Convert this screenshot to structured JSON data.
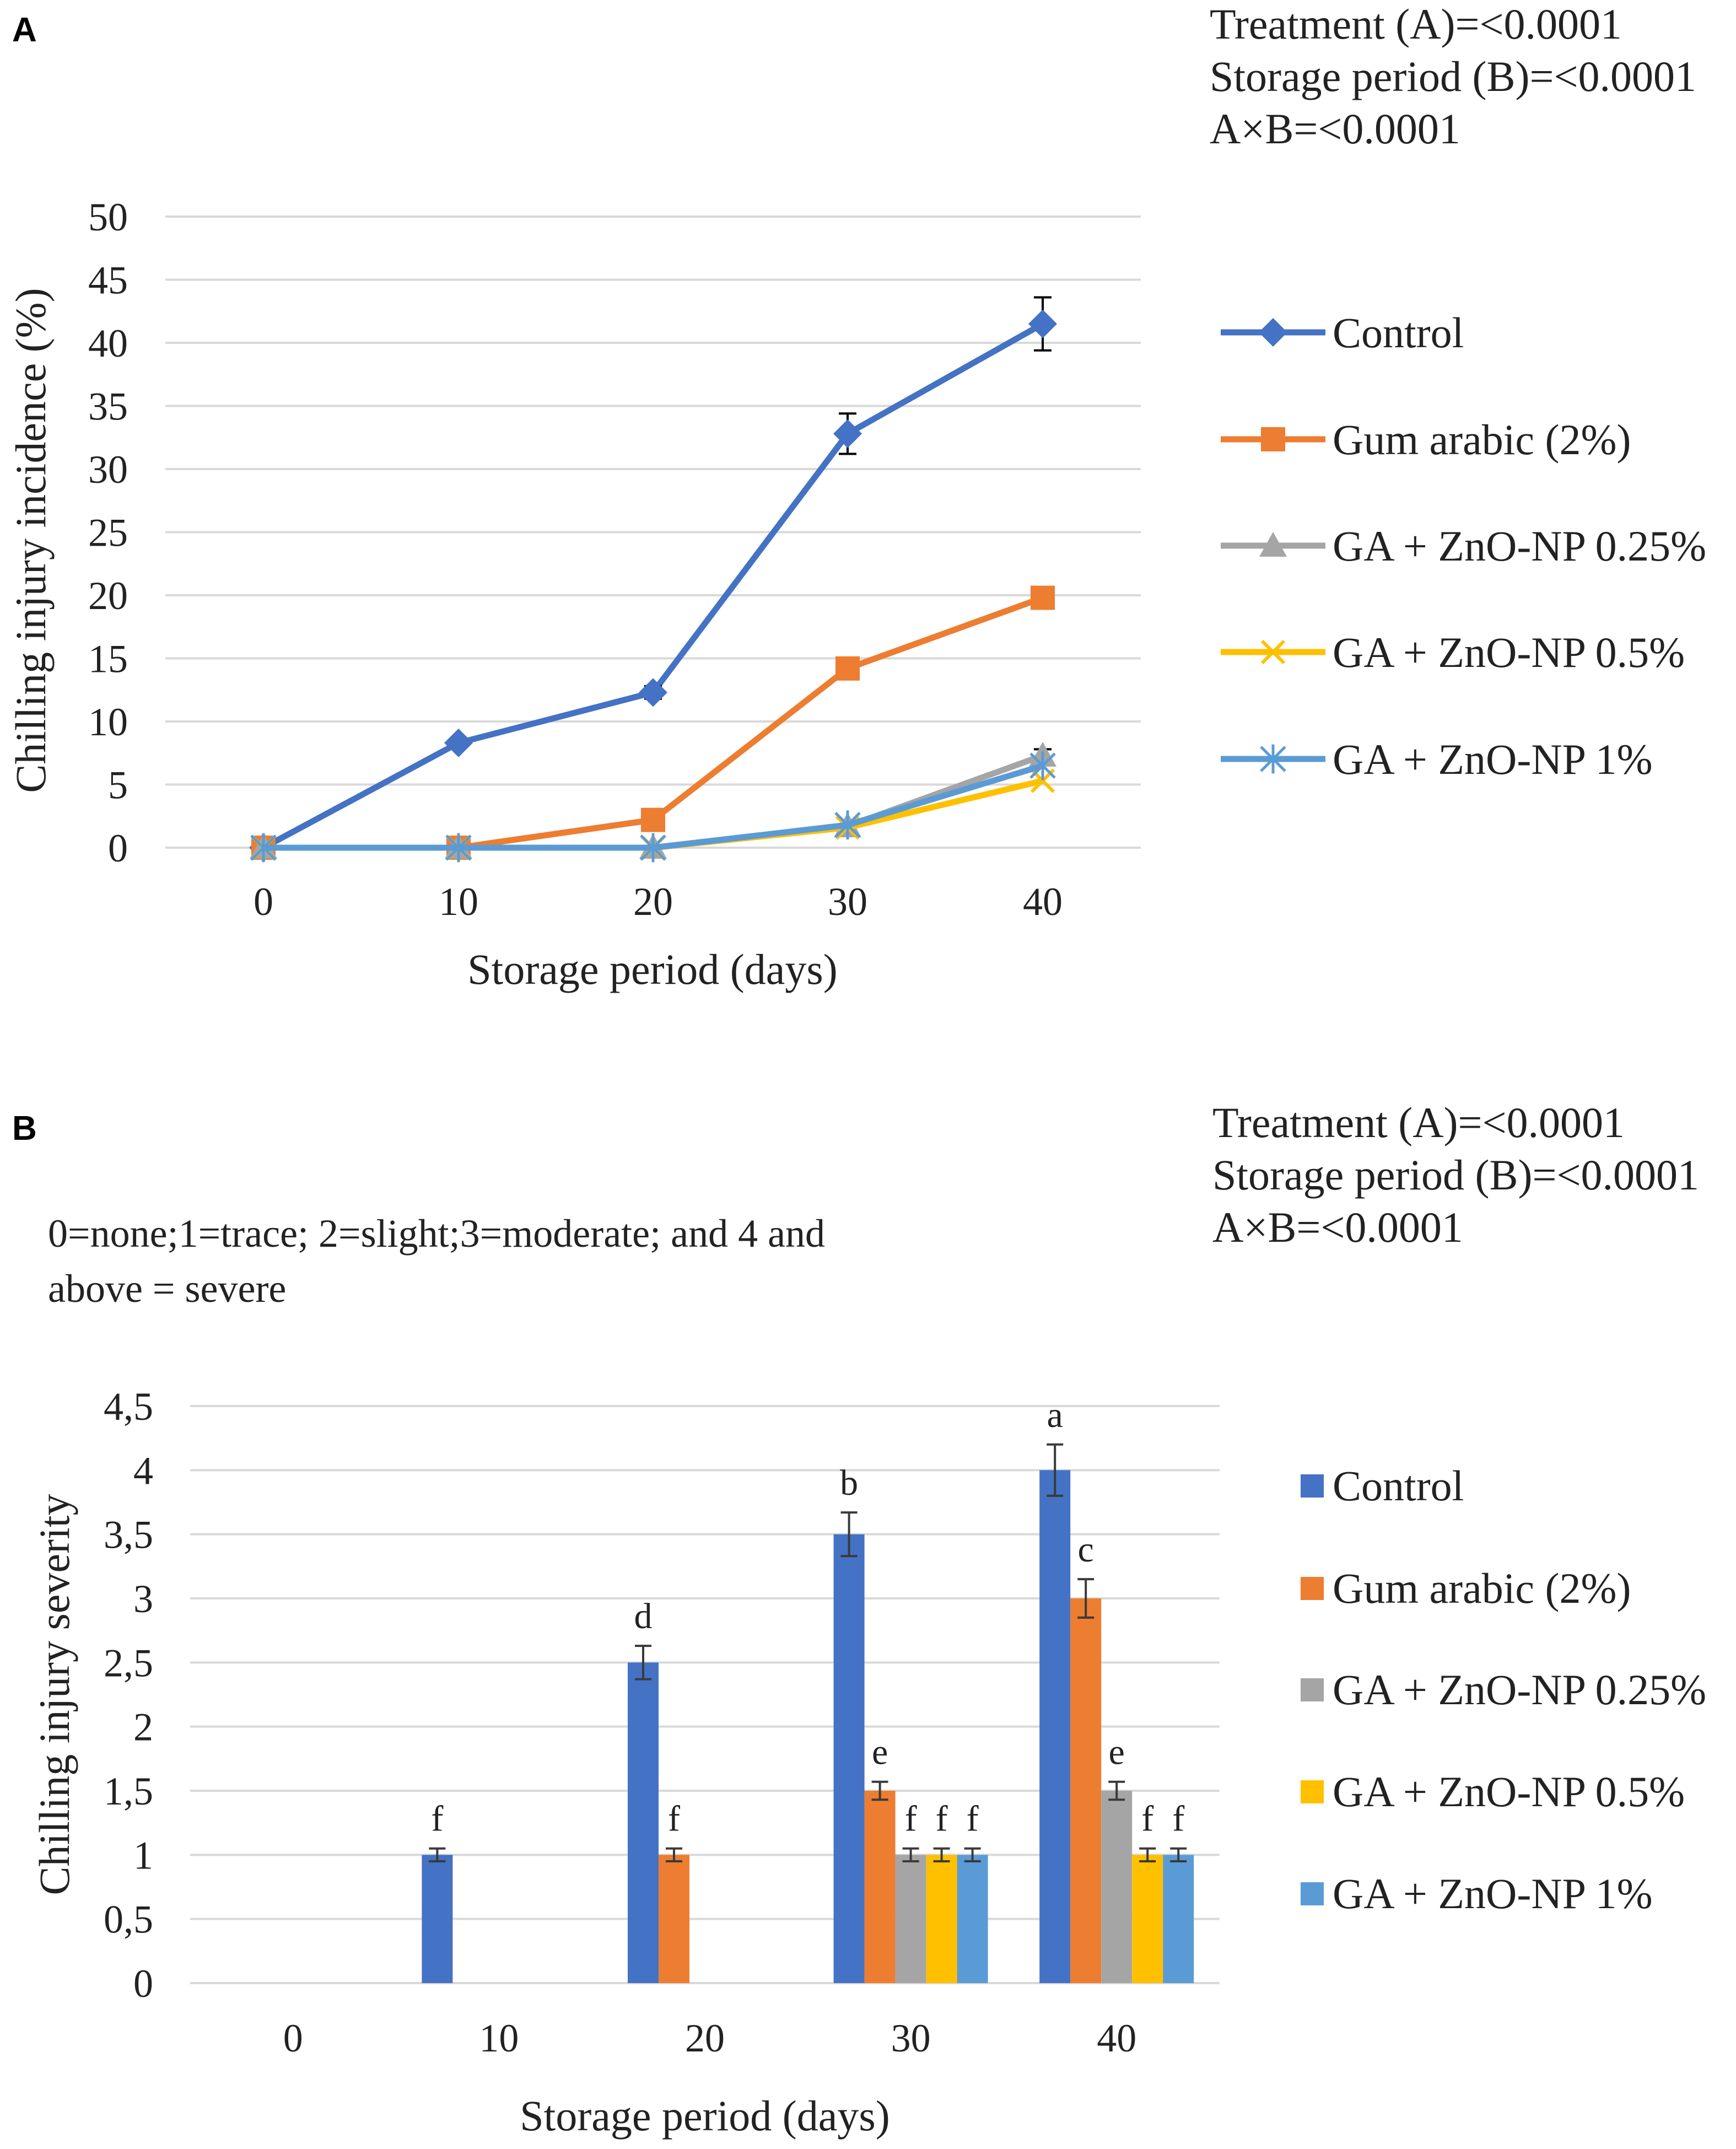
{
  "panels": {
    "A": {
      "letter": "A",
      "stats": [
        "Treatment (A)=<0.0001",
        "Storage period (B)=<0.0001",
        "A×B=<0.0001"
      ]
    },
    "B": {
      "letter": "B",
      "stats": [
        "Treatment (A)=<0.0001",
        "Storage period (B)=<0.0001",
        "A×B=<0.0001"
      ],
      "note": [
        "0=none;1=trace; 2=slight;3=moderate; and 4 and",
        "above = severe"
      ]
    }
  },
  "colors": {
    "control": "#4472C4",
    "gum_arabic": "#ED7D31",
    "ga_025": "#A5A5A5",
    "ga_05": "#FFC000",
    "ga_1": "#5B9BD5"
  },
  "chart_data": [
    {
      "type": "line",
      "title": "",
      "xlabel": "Storage period (days)",
      "ylabel": "Chilling injury incidence (%)",
      "x": [
        0,
        10,
        20,
        30,
        40
      ],
      "x_tick_labels": [
        "0",
        "10",
        "20",
        "30",
        "40"
      ],
      "ylim": [
        0,
        50
      ],
      "y_ticks": [
        0,
        5,
        10,
        15,
        20,
        25,
        30,
        35,
        40,
        45,
        50
      ],
      "y_tick_labels": [
        "0",
        "5",
        "10",
        "15",
        "20",
        "25",
        "30",
        "35",
        "40",
        "45",
        "50"
      ],
      "grid": true,
      "legend": "right",
      "series": [
        {
          "name": "Control",
          "marker": "diamond",
          "color": "#4472C4",
          "values": [
            0,
            8.3,
            12.3,
            32.8,
            41.5
          ],
          "errors": [
            0,
            0.3,
            0.5,
            1.6,
            2.1
          ]
        },
        {
          "name": "Gum arabic (2%)",
          "marker": "square",
          "color": "#ED7D31",
          "values": [
            0,
            0,
            2.2,
            14.2,
            19.8
          ],
          "errors": [
            0,
            0,
            0,
            0,
            0
          ]
        },
        {
          "name": "GA + ZnO-NP 0.25%",
          "marker": "triangle",
          "color": "#A5A5A5",
          "values": [
            0,
            0,
            0,
            1.7,
            7.3
          ],
          "errors": [
            0,
            0,
            0,
            0,
            0.5
          ]
        },
        {
          "name": "GA + ZnO-NP 0.5%",
          "marker": "x",
          "color": "#FFC000",
          "values": [
            0,
            0,
            0,
            1.6,
            5.3
          ],
          "errors": [
            0,
            0,
            0,
            0,
            0
          ]
        },
        {
          "name": "GA + ZnO-NP 1%",
          "marker": "star",
          "color": "#5B9BD5",
          "values": [
            0,
            0,
            0,
            1.8,
            6.5
          ],
          "errors": [
            0,
            0,
            0,
            0,
            0
          ]
        }
      ]
    },
    {
      "type": "bar",
      "title": "",
      "xlabel": "Storage period (days)",
      "ylabel": "Chilling injury severity",
      "categories": [
        "0",
        "10",
        "20",
        "30",
        "40"
      ],
      "ylim": [
        0,
        4.5
      ],
      "y_ticks": [
        0,
        0.5,
        1,
        1.5,
        2,
        2.5,
        3,
        3.5,
        4,
        4.5
      ],
      "y_tick_labels": [
        "0",
        "0,5",
        "1",
        "1,5",
        "2",
        "2,5",
        "3",
        "3,5",
        "4",
        "4,5"
      ],
      "grid": true,
      "legend": "right",
      "series": [
        {
          "name": "Control",
          "color": "#4472C4",
          "values": [
            0,
            1,
            2.5,
            3.5,
            4
          ],
          "errors": [
            0,
            0.05,
            0.13,
            0.17,
            0.2
          ],
          "labels": [
            "",
            "f",
            "d",
            "b",
            "a"
          ]
        },
        {
          "name": "Gum arabic (2%)",
          "color": "#ED7D31",
          "values": [
            0,
            0,
            1,
            1.5,
            3
          ],
          "errors": [
            0,
            0,
            0.05,
            0.07,
            0.15
          ],
          "labels": [
            "",
            "",
            "f",
            "e",
            "c"
          ]
        },
        {
          "name": "GA + ZnO-NP 0.25%",
          "color": "#A5A5A5",
          "values": [
            0,
            0,
            0,
            1,
            1.5
          ],
          "errors": [
            0,
            0,
            0,
            0.05,
            0.07
          ],
          "labels": [
            "",
            "",
            "",
            "f",
            "e"
          ]
        },
        {
          "name": "GA + ZnO-NP 0.5%",
          "color": "#FFC000",
          "values": [
            0,
            0,
            0,
            1,
            1
          ],
          "errors": [
            0,
            0,
            0,
            0.05,
            0.05
          ],
          "labels": [
            "",
            "",
            "",
            "f",
            "f"
          ]
        },
        {
          "name": "GA + ZnO-NP 1%",
          "color": "#5B9BD5",
          "values": [
            0,
            0,
            0,
            1,
            1
          ],
          "errors": [
            0,
            0,
            0,
            0.05,
            0.05
          ],
          "labels": [
            "",
            "",
            "",
            "f",
            "f"
          ]
        }
      ]
    }
  ]
}
